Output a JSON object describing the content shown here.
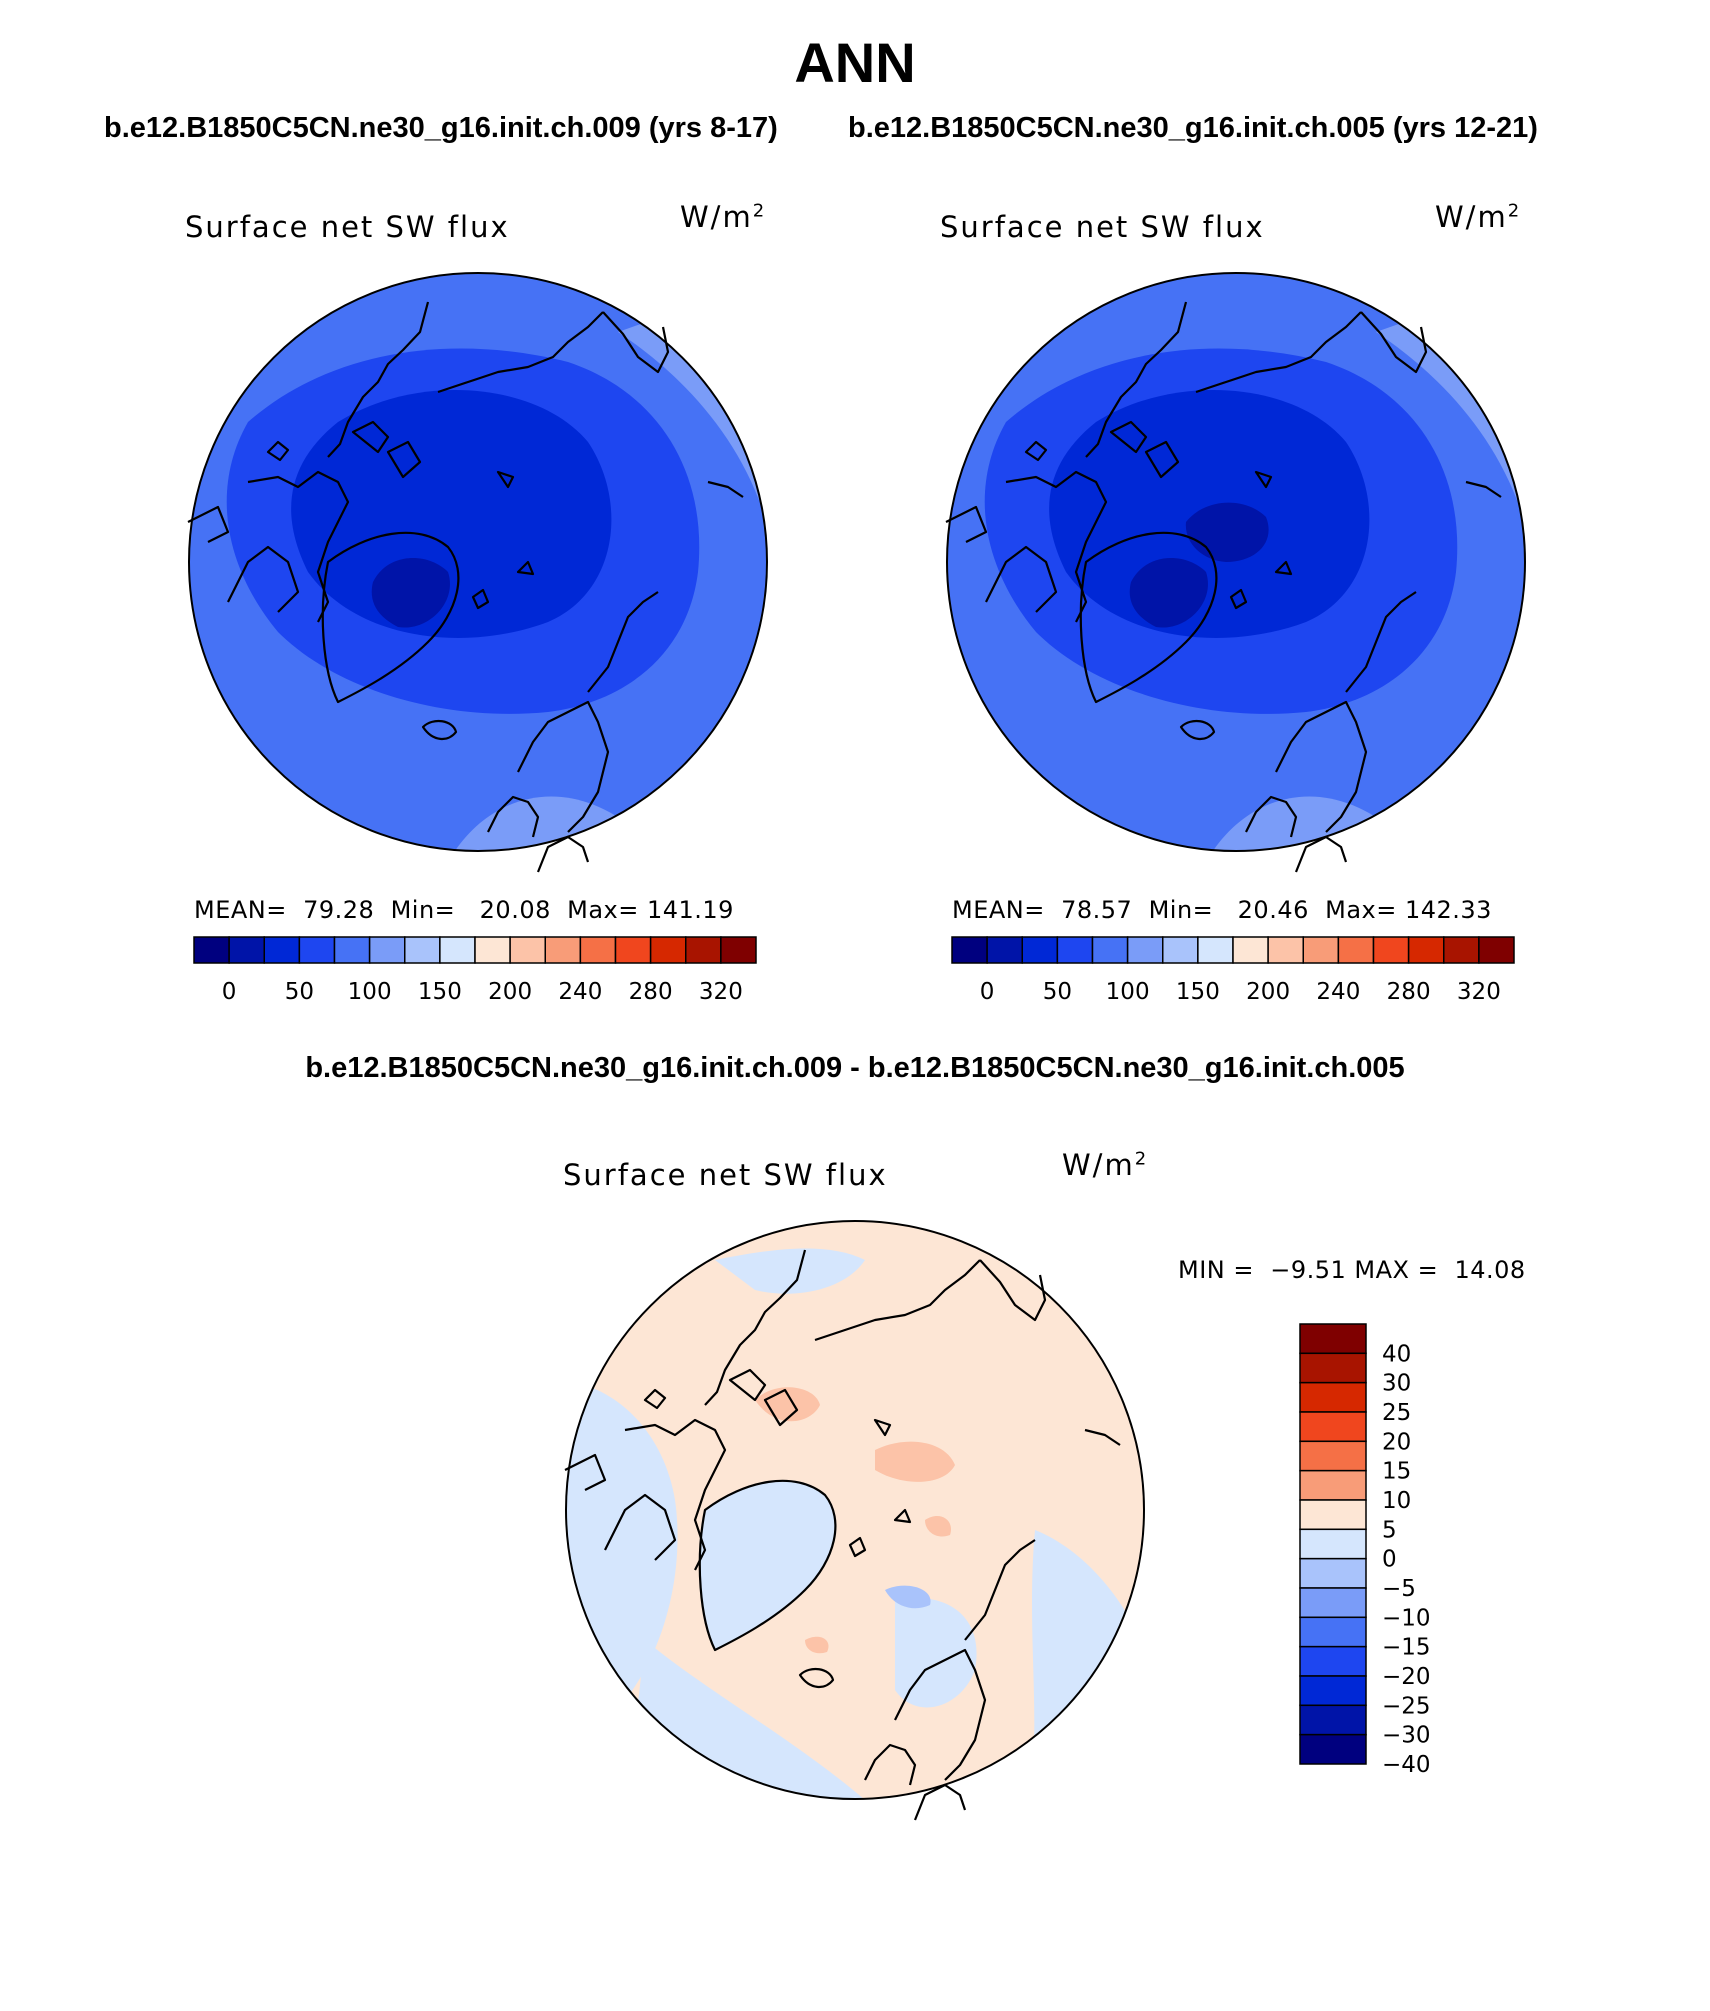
{
  "figure": {
    "title": "ANN",
    "case1_title": "b.e12.B1850C5CN.ne30_g16.init.ch.009 (yrs 8-17)",
    "case2_title": "b.e12.B1850C5CN.ne30_g16.init.ch.005 (yrs 12-21)",
    "diff_title": "b.e12.B1850C5CN.ne30_g16.init.ch.009 - b.e12.B1850C5CN.ne30_g16.init.ch.005"
  },
  "panels": {
    "case1": {
      "variable": "Surface net SW flux",
      "units_base": "W/m",
      "units_exp": "2",
      "stats_text": "MEAN=  79.28  Min=   20.08  Max= 141.19",
      "mean": 79.28,
      "min": 20.08,
      "max": 141.19
    },
    "case2": {
      "variable": "Surface net SW flux",
      "units_base": "W/m",
      "units_exp": "2",
      "stats_text": "MEAN=  78.57  Min=   20.46  Max= 142.33",
      "mean": 78.57,
      "min": 20.46,
      "max": 142.33
    },
    "diff": {
      "variable": "Surface net SW flux",
      "units_base": "W/m",
      "units_exp": "2",
      "stats_text": "MIN =  −9.51 MAX =  14.08",
      "min": -9.51,
      "max": 14.08
    }
  },
  "colorbar_abs": {
    "colors": [
      "#00007f",
      "#0014a8",
      "#0028d6",
      "#1e46f0",
      "#4672f5",
      "#7a9cf8",
      "#a9c3fb",
      "#d5e6fd",
      "#fde6d5",
      "#fcc3a8",
      "#f89c78",
      "#f57046",
      "#f0461e",
      "#d62800",
      "#a81400",
      "#7f0000"
    ],
    "tick_labels": [
      "0",
      "50",
      "100",
      "150",
      "200",
      "240",
      "280",
      "320"
    ]
  },
  "colorbar_diff": {
    "colors": [
      "#7f0000",
      "#a81400",
      "#d62800",
      "#f0461e",
      "#f57046",
      "#f89c78",
      "#fde6d5",
      "#d5e6fd",
      "#a9c3fb",
      "#7a9cf8",
      "#4672f5",
      "#1e46f0",
      "#0028d6",
      "#0014a8",
      "#00007f"
    ],
    "tick_labels": [
      "40",
      "30",
      "25",
      "20",
      "15",
      "10",
      "5",
      "0",
      "−5",
      "−10",
      "−15",
      "−20",
      "−25",
      "−30",
      "−40"
    ]
  },
  "map_colors": {
    "abs_outer": "#4672f5",
    "abs_light": "#7a9cf8",
    "abs_lighter": "#a9c3fb",
    "abs_mid": "#1e46f0",
    "abs_inner": "#0028d6",
    "abs_core": "#0014a8",
    "diff_pos": "#fde6d5",
    "diff_pos2": "#fcc3a8",
    "diff_neg": "#d5e6fd",
    "diff_neg2": "#a9c3fb"
  }
}
